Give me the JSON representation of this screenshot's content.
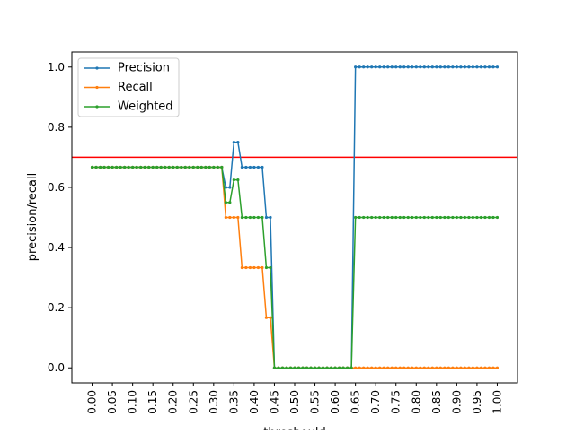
{
  "chart_data": {
    "type": "line",
    "title": "",
    "xlabel": "threshould",
    "ylabel": "precision/recall",
    "xlim": [
      -0.05,
      1.05
    ],
    "ylim": [
      -0.05,
      1.05
    ],
    "x_ticks": [
      "0.00",
      "0.05",
      "0.10",
      "0.15",
      "0.20",
      "0.25",
      "0.30",
      "0.35",
      "0.40",
      "0.45",
      "0.50",
      "0.55",
      "0.60",
      "0.65",
      "0.70",
      "0.75",
      "0.80",
      "0.85",
      "0.90",
      "0.95",
      "1.00"
    ],
    "y_ticks": [
      "0.0",
      "0.2",
      "0.4",
      "0.6",
      "0.8",
      "1.0"
    ],
    "grid": false,
    "legend_position": "upper-left",
    "reference_line": {
      "y": 0.7,
      "color": "#ff0000"
    },
    "x": [
      0.0,
      0.01,
      0.02,
      0.03,
      0.04,
      0.05,
      0.06,
      0.07,
      0.08,
      0.09,
      0.1,
      0.11,
      0.12,
      0.13,
      0.14,
      0.15,
      0.16,
      0.17,
      0.18,
      0.19,
      0.2,
      0.21,
      0.22,
      0.23,
      0.24,
      0.25,
      0.26,
      0.27,
      0.28,
      0.29,
      0.3,
      0.31,
      0.32,
      0.33,
      0.34,
      0.35,
      0.36,
      0.37,
      0.38,
      0.39,
      0.4,
      0.41,
      0.42,
      0.43,
      0.44,
      0.45,
      0.46,
      0.47,
      0.48,
      0.49,
      0.5,
      0.51,
      0.52,
      0.53,
      0.54,
      0.55,
      0.56,
      0.57,
      0.58,
      0.59,
      0.6,
      0.61,
      0.62,
      0.63,
      0.64,
      0.65,
      0.66,
      0.67,
      0.68,
      0.69,
      0.7,
      0.71,
      0.72,
      0.73,
      0.74,
      0.75,
      0.76,
      0.77,
      0.78,
      0.79,
      0.8,
      0.81,
      0.82,
      0.83,
      0.84,
      0.85,
      0.86,
      0.87,
      0.88,
      0.89,
      0.9,
      0.91,
      0.92,
      0.93,
      0.94,
      0.95,
      0.96,
      0.97,
      0.98,
      0.99,
      1.0
    ],
    "series": [
      {
        "name": "Precision",
        "color": "#1f77b4",
        "values": [
          0.667,
          0.667,
          0.667,
          0.667,
          0.667,
          0.667,
          0.667,
          0.667,
          0.667,
          0.667,
          0.667,
          0.667,
          0.667,
          0.667,
          0.667,
          0.667,
          0.667,
          0.667,
          0.667,
          0.667,
          0.667,
          0.667,
          0.667,
          0.667,
          0.667,
          0.667,
          0.667,
          0.667,
          0.667,
          0.667,
          0.667,
          0.667,
          0.667,
          0.6,
          0.6,
          0.75,
          0.75,
          0.667,
          0.667,
          0.667,
          0.667,
          0.667,
          0.667,
          0.5,
          0.5,
          0,
          0,
          0,
          0,
          0,
          0,
          0,
          0,
          0,
          0,
          0,
          0,
          0,
          0,
          0,
          0,
          0,
          0,
          0,
          0,
          1,
          1,
          1,
          1,
          1,
          1,
          1,
          1,
          1,
          1,
          1,
          1,
          1,
          1,
          1,
          1,
          1,
          1,
          1,
          1,
          1,
          1,
          1,
          1,
          1,
          1,
          1,
          1,
          1,
          1,
          1,
          1,
          1,
          1,
          1,
          1
        ]
      },
      {
        "name": "Recall",
        "color": "#ff7f0e",
        "values": [
          0.667,
          0.667,
          0.667,
          0.667,
          0.667,
          0.667,
          0.667,
          0.667,
          0.667,
          0.667,
          0.667,
          0.667,
          0.667,
          0.667,
          0.667,
          0.667,
          0.667,
          0.667,
          0.667,
          0.667,
          0.667,
          0.667,
          0.667,
          0.667,
          0.667,
          0.667,
          0.667,
          0.667,
          0.667,
          0.667,
          0.667,
          0.667,
          0.667,
          0.5,
          0.5,
          0.5,
          0.5,
          0.333,
          0.333,
          0.333,
          0.333,
          0.333,
          0.333,
          0.167,
          0.167,
          0,
          0,
          0,
          0,
          0,
          0,
          0,
          0,
          0,
          0,
          0,
          0,
          0,
          0,
          0,
          0,
          0,
          0,
          0,
          0,
          0,
          0,
          0,
          0,
          0,
          0,
          0,
          0,
          0,
          0,
          0,
          0,
          0,
          0,
          0,
          0,
          0,
          0,
          0,
          0,
          0,
          0,
          0,
          0,
          0,
          0,
          0,
          0,
          0,
          0,
          0,
          0,
          0,
          0,
          0,
          0
        ]
      },
      {
        "name": "Weighted",
        "color": "#2ca02c",
        "values": [
          0.667,
          0.667,
          0.667,
          0.667,
          0.667,
          0.667,
          0.667,
          0.667,
          0.667,
          0.667,
          0.667,
          0.667,
          0.667,
          0.667,
          0.667,
          0.667,
          0.667,
          0.667,
          0.667,
          0.667,
          0.667,
          0.667,
          0.667,
          0.667,
          0.667,
          0.667,
          0.667,
          0.667,
          0.667,
          0.667,
          0.667,
          0.667,
          0.667,
          0.55,
          0.55,
          0.625,
          0.625,
          0.5,
          0.5,
          0.5,
          0.5,
          0.5,
          0.5,
          0.333,
          0.333,
          0,
          0,
          0,
          0,
          0,
          0,
          0,
          0,
          0,
          0,
          0,
          0,
          0,
          0,
          0,
          0,
          0,
          0,
          0,
          0,
          0.5,
          0.5,
          0.5,
          0.5,
          0.5,
          0.5,
          0.5,
          0.5,
          0.5,
          0.5,
          0.5,
          0.5,
          0.5,
          0.5,
          0.5,
          0.5,
          0.5,
          0.5,
          0.5,
          0.5,
          0.5,
          0.5,
          0.5,
          0.5,
          0.5,
          0.5,
          0.5,
          0.5,
          0.5,
          0.5,
          0.5,
          0.5,
          0.5,
          0.5,
          0.5,
          0.5
        ]
      }
    ]
  }
}
